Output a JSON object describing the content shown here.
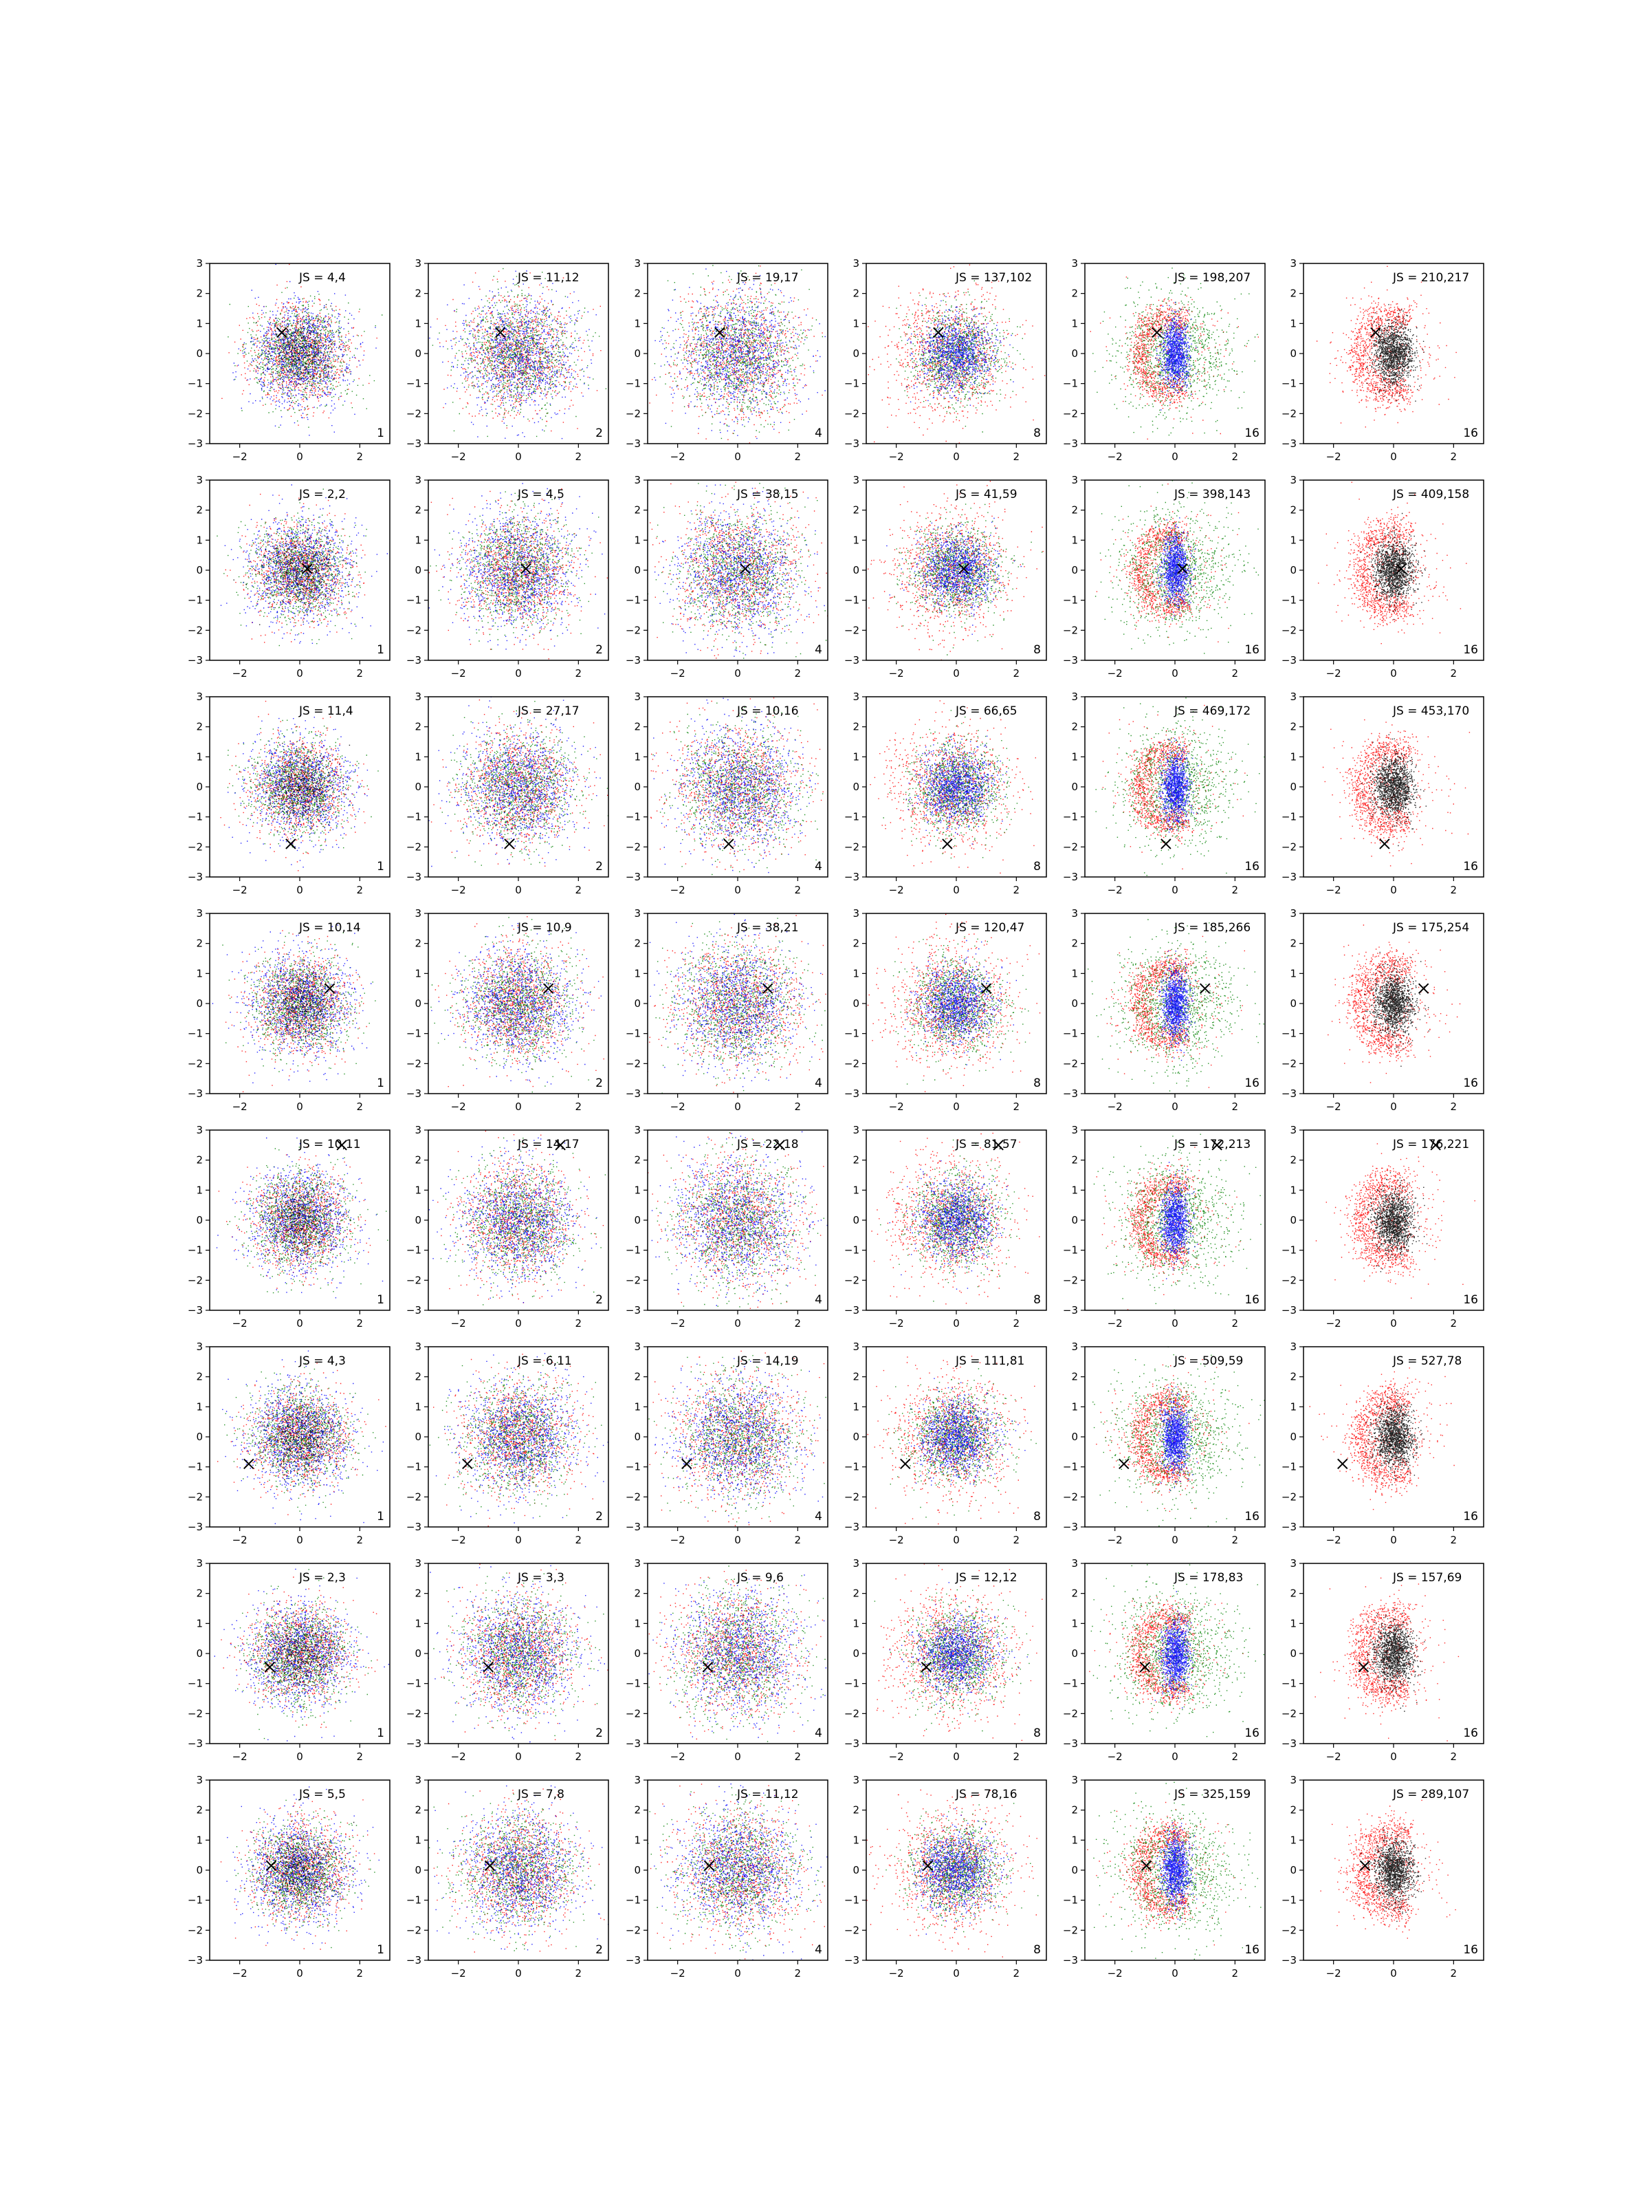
{
  "chart_data": {
    "type": "scatter",
    "layout": {
      "rows": 8,
      "cols": 6
    },
    "xlim": [
      -3,
      3
    ],
    "ylim": [
      -3,
      3
    ],
    "xticks": [
      -2,
      0,
      2
    ],
    "yticks": [
      -3,
      -2,
      -1,
      0,
      1,
      2,
      3
    ],
    "grid": false,
    "legend": false,
    "series_colors": {
      "red": "#ff0000",
      "green": "#008000",
      "blue": "#0000ff",
      "black": "#000000"
    },
    "marker": {
      "shape": "x",
      "color": "#000000"
    },
    "rows": [
      {
        "marker": [
          -0.6,
          0.7
        ],
        "panels": [
          {
            "js": "JS = 4,4",
            "n": "1"
          },
          {
            "js": "JS = 11,12",
            "n": "2"
          },
          {
            "js": "JS = 19,17",
            "n": "4"
          },
          {
            "js": "JS = 137,102",
            "n": "8"
          },
          {
            "js": "JS = 198,207",
            "n": "16"
          },
          {
            "js": "JS = 210,217",
            "n": "16"
          }
        ]
      },
      {
        "marker": [
          0.25,
          0.05
        ],
        "panels": [
          {
            "js": "JS = 2,2",
            "n": "1"
          },
          {
            "js": "JS = 4,5",
            "n": "2"
          },
          {
            "js": "JS = 38,15",
            "n": "4"
          },
          {
            "js": "JS = 41,59",
            "n": "8"
          },
          {
            "js": "JS = 398,143",
            "n": "16"
          },
          {
            "js": "JS = 409,158",
            "n": "16"
          }
        ]
      },
      {
        "marker": [
          -0.3,
          -1.9
        ],
        "panels": [
          {
            "js": "JS = 11,4",
            "n": "1"
          },
          {
            "js": "JS = 27,17",
            "n": "2"
          },
          {
            "js": "JS = 10,16",
            "n": "4"
          },
          {
            "js": "JS = 66,65",
            "n": "8"
          },
          {
            "js": "JS = 469,172",
            "n": "16"
          },
          {
            "js": "JS = 453,170",
            "n": "16"
          }
        ]
      },
      {
        "marker": [
          1.0,
          0.5
        ],
        "panels": [
          {
            "js": "JS = 10,14",
            "n": "1"
          },
          {
            "js": "JS = 10,9",
            "n": "2"
          },
          {
            "js": "JS = 38,21",
            "n": "4"
          },
          {
            "js": "JS = 120,47",
            "n": "8"
          },
          {
            "js": "JS = 185,266",
            "n": "16"
          },
          {
            "js": "JS = 175,254",
            "n": "16"
          }
        ]
      },
      {
        "marker": [
          1.4,
          2.5
        ],
        "panels": [
          {
            "js": "JS = 10,11",
            "n": "1"
          },
          {
            "js": "JS = 14,17",
            "n": "2"
          },
          {
            "js": "JS = 22,18",
            "n": "4"
          },
          {
            "js": "JS = 81,57",
            "n": "8"
          },
          {
            "js": "JS = 172,213",
            "n": "16"
          },
          {
            "js": "JS = 176,221",
            "n": "16"
          }
        ]
      },
      {
        "marker": [
          -1.7,
          -0.9
        ],
        "panels": [
          {
            "js": "JS = 4,3",
            "n": "1"
          },
          {
            "js": "JS = 6,11",
            "n": "2"
          },
          {
            "js": "JS = 14,19",
            "n": "4"
          },
          {
            "js": "JS = 111,81",
            "n": "8"
          },
          {
            "js": "JS = 509,59",
            "n": "16"
          },
          {
            "js": "JS = 527,78",
            "n": "16"
          }
        ]
      },
      {
        "marker": [
          -1.0,
          -0.45
        ],
        "panels": [
          {
            "js": "JS = 2,3",
            "n": "1"
          },
          {
            "js": "JS = 3,3",
            "n": "2"
          },
          {
            "js": "JS = 9,6",
            "n": "4"
          },
          {
            "js": "JS = 12,12",
            "n": "8"
          },
          {
            "js": "JS = 178,83",
            "n": "16"
          },
          {
            "js": "JS = 157,69",
            "n": "16"
          }
        ]
      },
      {
        "marker": [
          -0.95,
          0.15
        ],
        "panels": [
          {
            "js": "JS = 5,5",
            "n": "1"
          },
          {
            "js": "JS = 7,8",
            "n": "2"
          },
          {
            "js": "JS = 11,12",
            "n": "4"
          },
          {
            "js": "JS = 78,16",
            "n": "8"
          },
          {
            "js": "JS = 325,159",
            "n": "16"
          },
          {
            "js": "JS = 289,107",
            "n": "16"
          }
        ]
      }
    ]
  }
}
